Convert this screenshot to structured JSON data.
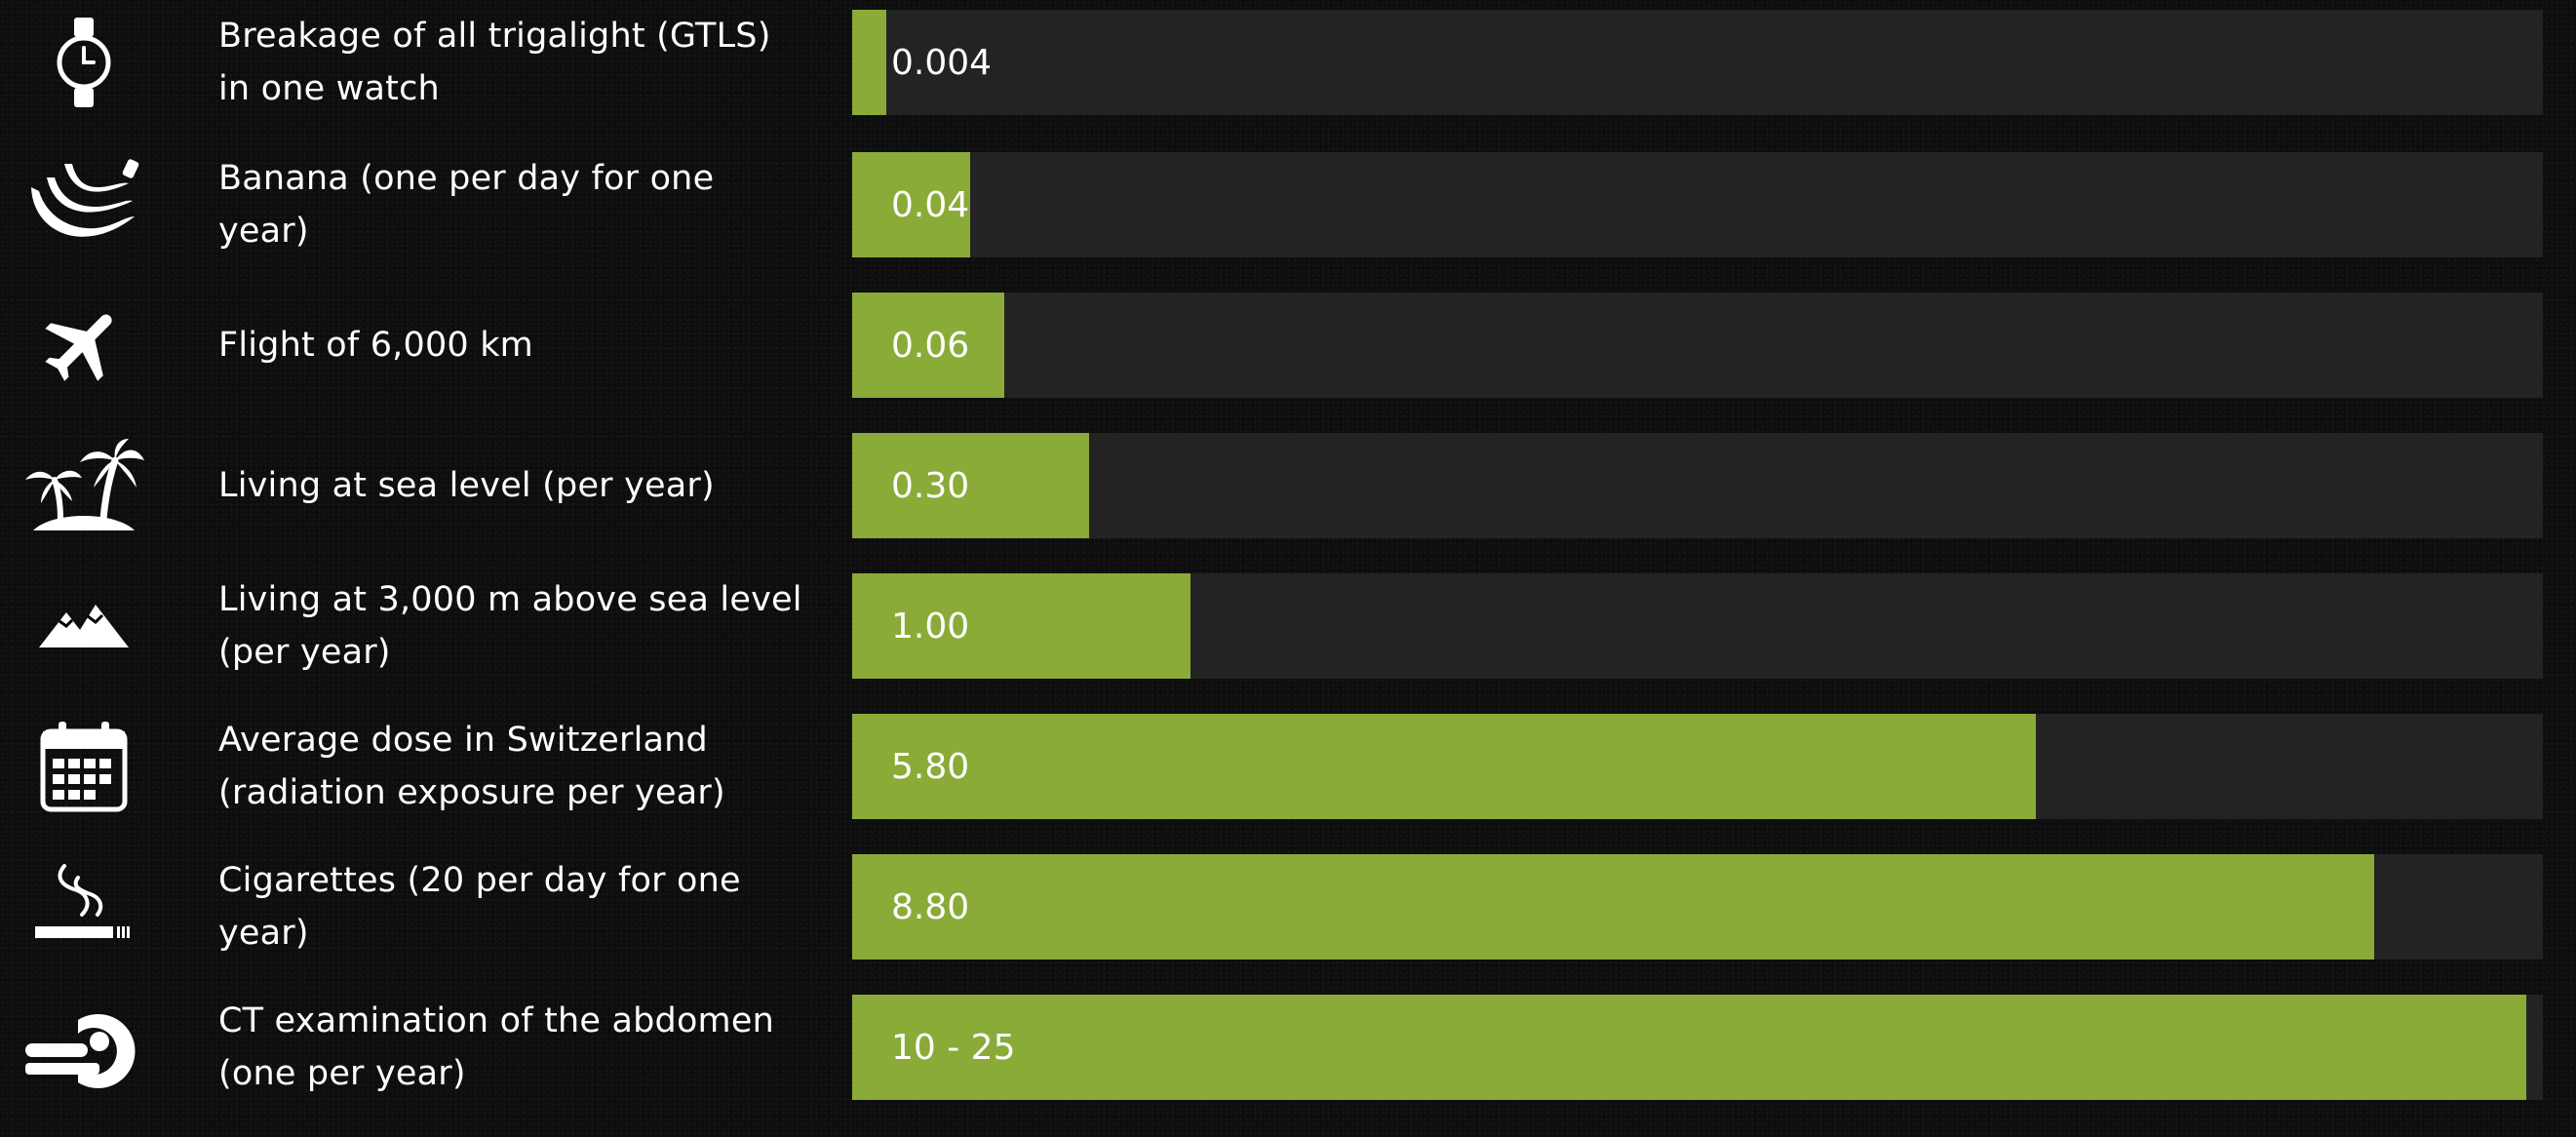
{
  "chart_data": {
    "type": "bar",
    "orientation": "horizontal",
    "unit": "",
    "xlim": [
      0,
      25
    ],
    "colors": {
      "bar": "#8aab38",
      "track": "#232323",
      "background": "#0d0d0d",
      "text": "#ffffff"
    },
    "categories": [
      "Breakage of all trigalight (GTLS) in one watch",
      "Banana (one per day for one year)",
      "Flight of 6,000 km",
      "Living at sea level (per year)",
      "Living at 3,000 m above sea level (per year)",
      "Average dose in Switzerland (radiation exposure per year)",
      "Cigarettes (20 per day for one year)",
      "CT examination of the abdomen (one per year)"
    ],
    "rows": [
      {
        "label": "Breakage of all trigalight (GTLS) in one watch",
        "value_label": "0.004",
        "value": 0.004,
        "fill_fraction": 0.02,
        "icon": "watch-icon"
      },
      {
        "label": "Banana (one per day for one year)",
        "value_label": "0.04",
        "value": 0.04,
        "fill_fraction": 0.07,
        "icon": "banana-icon"
      },
      {
        "label": "Flight of 6,000 km",
        "value_label": "0.06",
        "value": 0.06,
        "fill_fraction": 0.09,
        "icon": "airplane-icon"
      },
      {
        "label": "Living at sea level (per year)",
        "value_label": "0.30",
        "value": 0.3,
        "fill_fraction": 0.14,
        "icon": "palm-island-icon"
      },
      {
        "label": "Living at 3,000 m above sea level (per year)",
        "value_label": "1.00",
        "value": 1.0,
        "fill_fraction": 0.2,
        "icon": "mountains-icon"
      },
      {
        "label": "Average dose in Switzerland (radiation exposure per year)",
        "value_label": "5.80",
        "value": 5.8,
        "fill_fraction": 0.7,
        "icon": "calendar-icon"
      },
      {
        "label": "Cigarettes (20 per day for one year)",
        "value_label": "8.80",
        "value": 8.8,
        "fill_fraction": 0.9,
        "icon": "cigarette-icon"
      },
      {
        "label": "CT examination of the abdomen (one per year)",
        "value_label": "10 - 25",
        "value": [
          10,
          25
        ],
        "fill_fraction": 0.99,
        "icon": "ct-scanner-icon"
      }
    ]
  }
}
